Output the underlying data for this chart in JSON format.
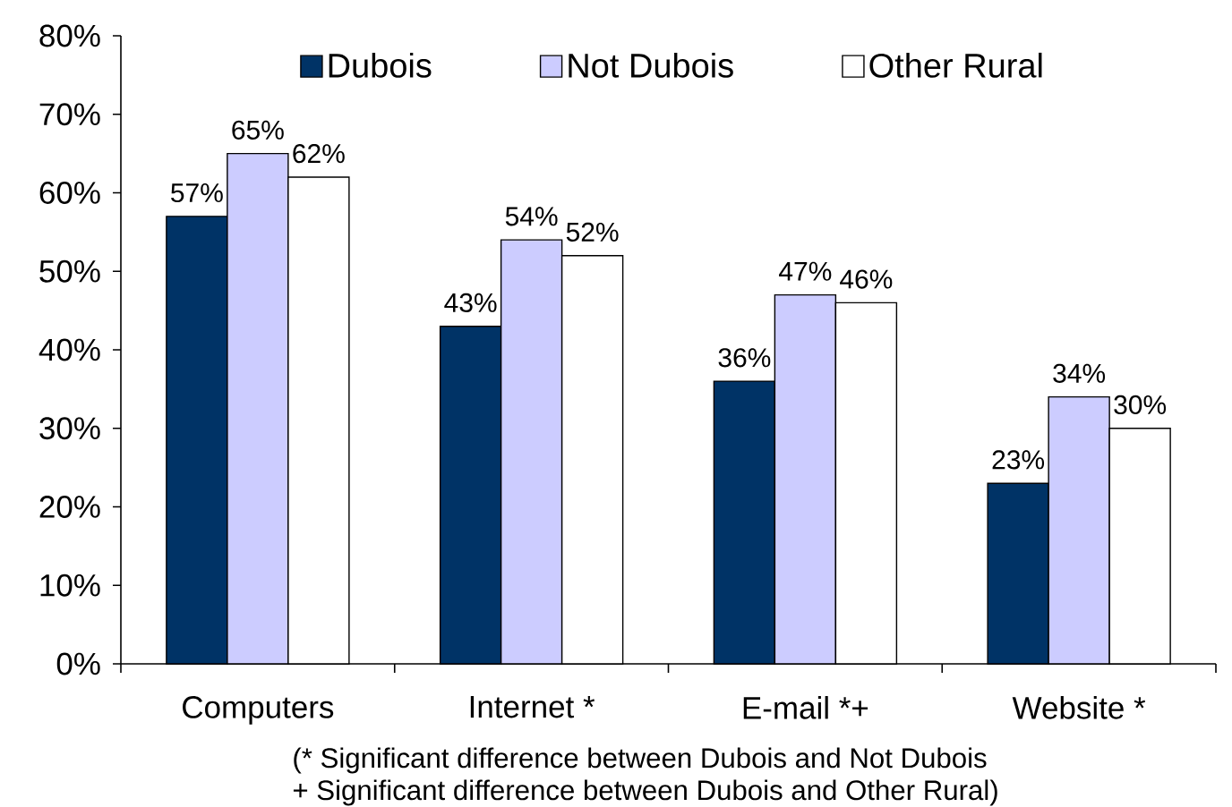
{
  "chart_data": {
    "type": "bar",
    "categories": [
      "Computers",
      "Internet *",
      "E-mail *+",
      "Website *"
    ],
    "series": [
      {
        "name": "Dubois",
        "color": "#003366",
        "values": [
          57,
          43,
          36,
          23
        ],
        "value_labels": [
          "57%",
          "43%",
          "36%",
          "23%"
        ]
      },
      {
        "name": "Not Dubois",
        "color": "#ccccff",
        "values": [
          65,
          54,
          47,
          34
        ],
        "value_labels": [
          "65%",
          "54%",
          "47%",
          "34%"
        ]
      },
      {
        "name": "Other Rural",
        "color": "#ffffff",
        "values": [
          62,
          52,
          46,
          30
        ],
        "value_labels": [
          "62%",
          "52%",
          "46%",
          "30%"
        ]
      }
    ],
    "ylim": [
      0,
      80
    ],
    "yticks": [
      {
        "value": 0,
        "label": "0%"
      },
      {
        "value": 10,
        "label": "10%"
      },
      {
        "value": 20,
        "label": "20%"
      },
      {
        "value": 30,
        "label": "30%"
      },
      {
        "value": 40,
        "label": "40%"
      },
      {
        "value": 50,
        "label": "50%"
      },
      {
        "value": 60,
        "label": "60%"
      },
      {
        "value": 70,
        "label": "70%"
      },
      {
        "value": 80,
        "label": "80%"
      }
    ],
    "legend": "top",
    "annotations": [
      "(* Significant difference between Dubois and Not Dubois",
      "+ Significant difference between Dubois and Other Rural)"
    ]
  }
}
